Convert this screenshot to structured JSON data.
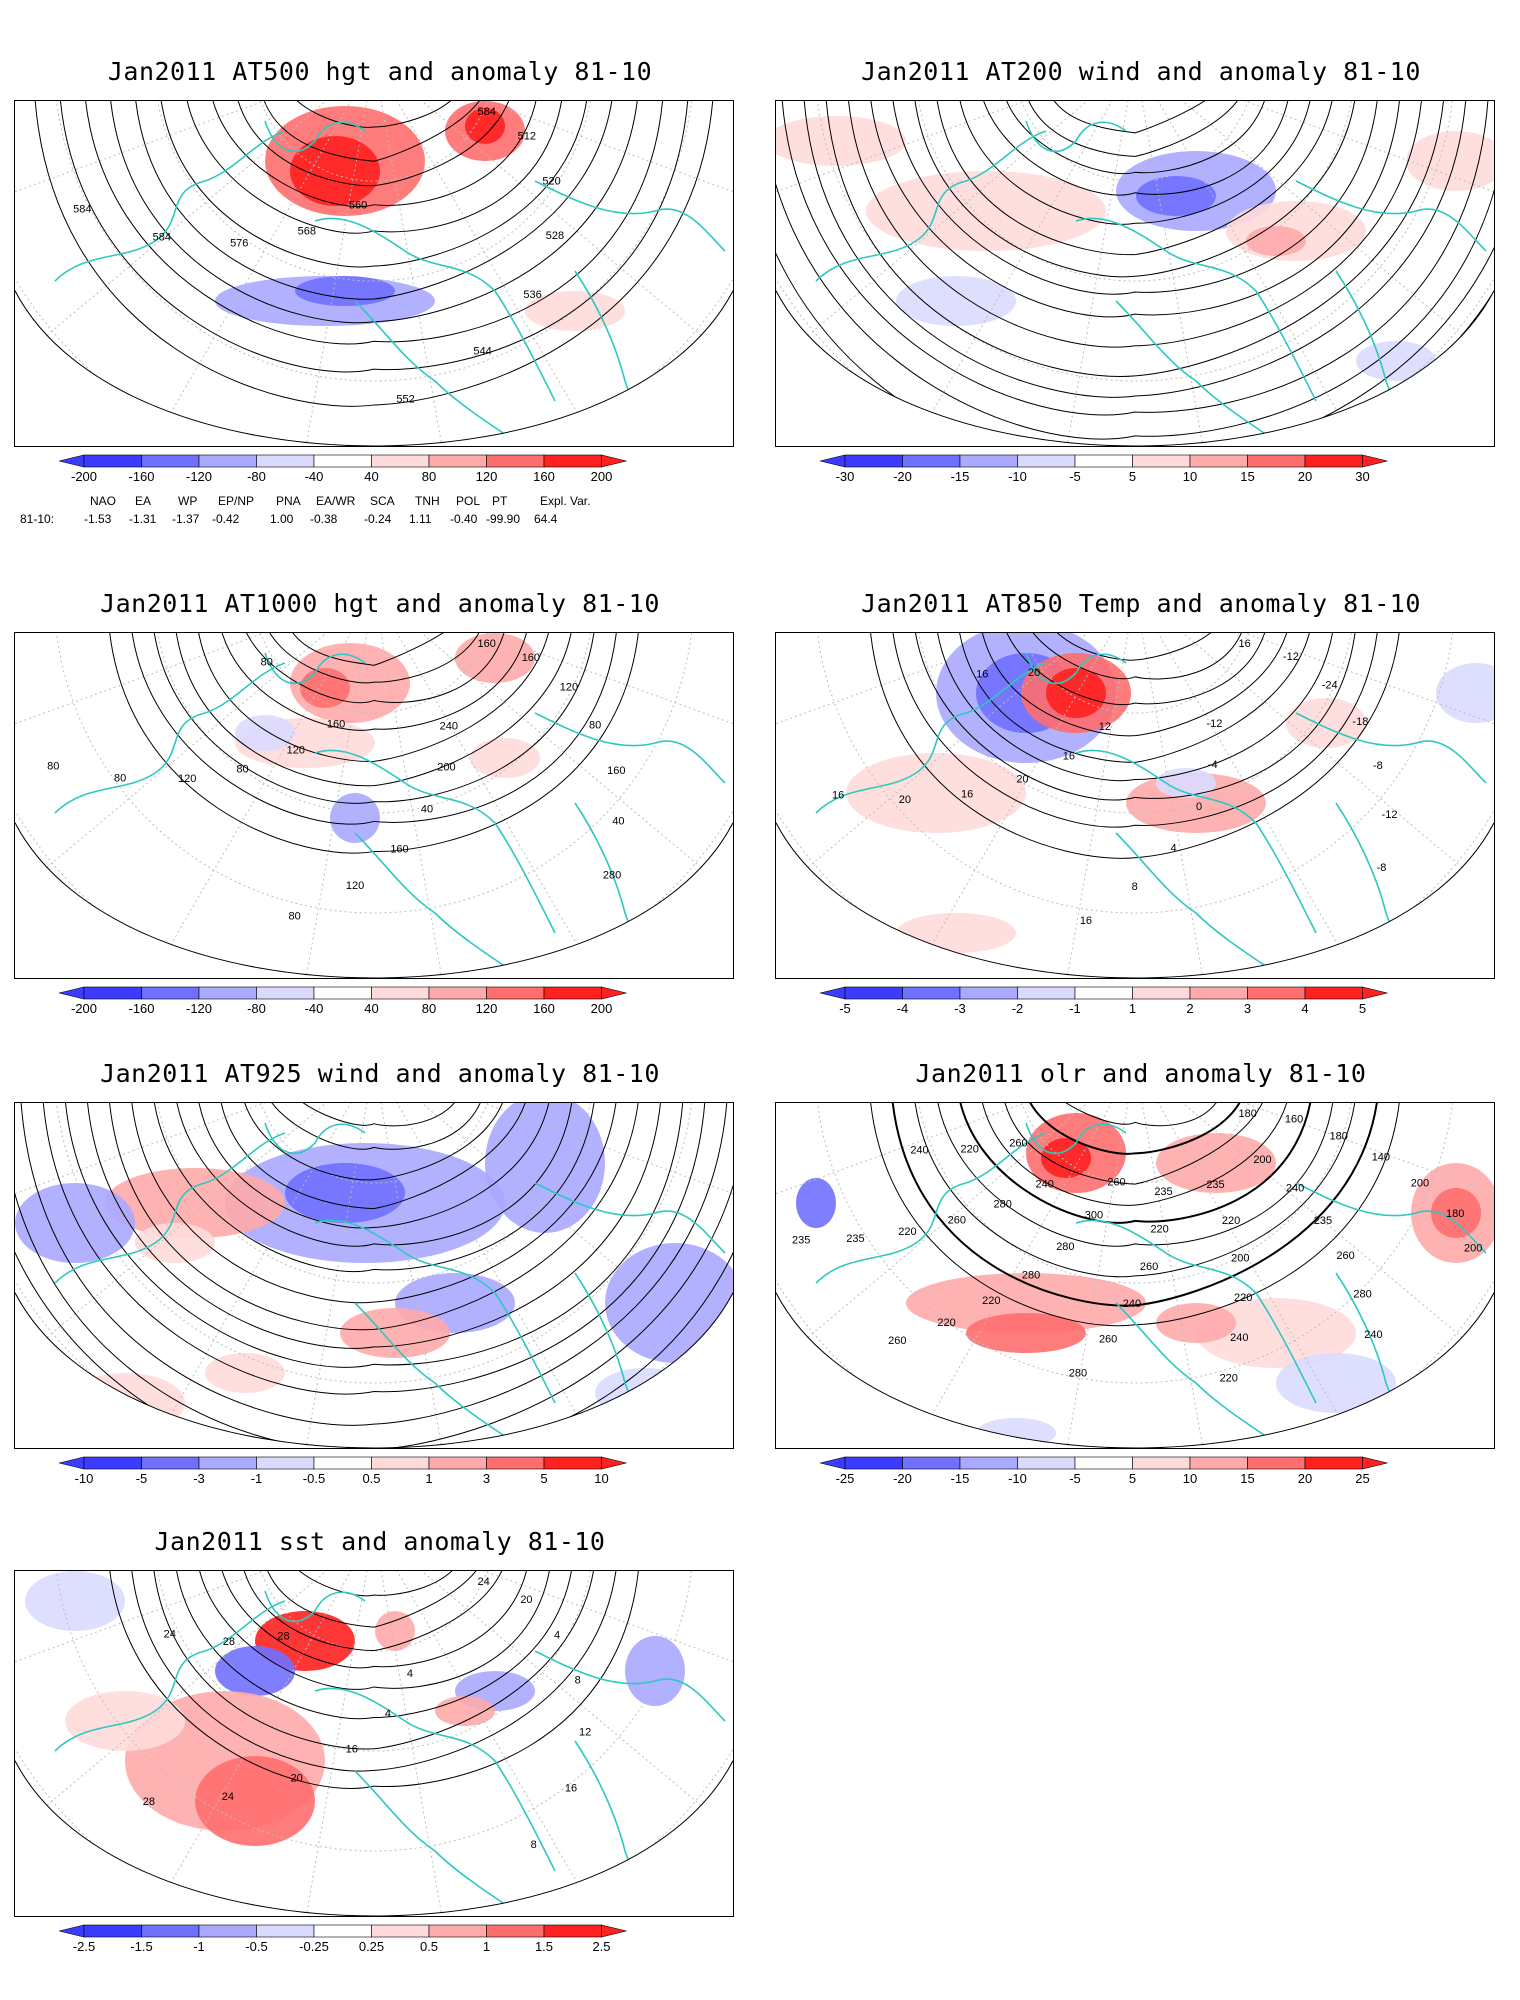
{
  "colors": {
    "red_strong": "#ff2020",
    "red_mid": "#ff6e6e",
    "red_light": "#ffaaaa",
    "red_pale": "#ffdada",
    "blue_strong": "#3c3cff",
    "blue_mid": "#7070ff",
    "blue_light": "#a9a9ff",
    "blue_pale": "#dadaff",
    "coast": "#2ec8c0",
    "contour": "#000000",
    "grid": "#bdbdbd"
  },
  "panels": [
    {
      "id": "at500",
      "title": "Jan2011 AT500 hgt and anomaly 81-10",
      "colorbar": [
        "-200",
        "-160",
        "-120",
        "-80",
        "-40",
        "40",
        "80",
        "120",
        "160",
        "200"
      ],
      "contour_labels": [
        "584",
        "512",
        "520",
        "528",
        "536",
        "544",
        "552",
        "560",
        "568",
        "576",
        "584",
        "584"
      ]
    },
    {
      "id": "at200",
      "title": "Jan2011 AT200 wind and anomaly 81-10",
      "colorbar": [
        "-30",
        "-20",
        "-15",
        "-10",
        "-5",
        "5",
        "10",
        "15",
        "20",
        "30"
      ],
      "contour_labels": []
    },
    {
      "id": "at1000",
      "title": "Jan2011 AT1000 hgt and anomaly 81-10",
      "colorbar": [
        "-200",
        "-160",
        "-120",
        "-80",
        "-40",
        "40",
        "80",
        "120",
        "160",
        "200"
      ],
      "contour_labels": [
        "160",
        "160",
        "120",
        "80",
        "160",
        "40",
        "280",
        "240",
        "200",
        "40",
        "160",
        "120",
        "80",
        "160",
        "120",
        "80",
        "120",
        "80",
        "80",
        "80"
      ]
    },
    {
      "id": "at850",
      "title": "Jan2011 AT850 Temp and anomaly 81-10",
      "colorbar": [
        "-5",
        "-4",
        "-3",
        "-2",
        "-1",
        "1",
        "2",
        "3",
        "4",
        "5"
      ],
      "contour_labels": [
        "16",
        "-12",
        "-24",
        "-18",
        "-8",
        "-12",
        "-8",
        "-12",
        "-4",
        "0",
        "4",
        "8",
        "16",
        "12",
        "16",
        "20",
        "16",
        "20",
        "16",
        "20",
        "16"
      ]
    },
    {
      "id": "at925",
      "title": "Jan2011 AT925 wind and anomaly 81-10",
      "colorbar": [
        "-10",
        "-5",
        "-3",
        "-1",
        "-0.5",
        "0.5",
        "1",
        "3",
        "5",
        "10"
      ],
      "contour_labels": []
    },
    {
      "id": "olr",
      "title": "Jan2011 olr and anomaly 81-10",
      "colorbar": [
        "-25",
        "-20",
        "-15",
        "-10",
        "-5",
        "5",
        "10",
        "15",
        "20",
        "25"
      ],
      "contour_labels": [
        "180",
        "160",
        "180",
        "140",
        "200",
        "180",
        "200",
        "200",
        "240",
        "235",
        "260",
        "280",
        "240",
        "235",
        "220",
        "200",
        "220",
        "240",
        "220",
        "235",
        "220",
        "260",
        "240",
        "260",
        "280",
        "260",
        "300",
        "280",
        "280",
        "220",
        "220",
        "260",
        "240",
        "280",
        "260",
        "220",
        "235",
        "235",
        "260",
        "220",
        "240"
      ]
    },
    {
      "id": "sst",
      "title": "Jan2011 sst and anomaly 81-10",
      "colorbar": [
        "-2.5",
        "-1.5",
        "-1",
        "-0.5",
        "-0.25",
        "0.25",
        "0.5",
        "1",
        "1.5",
        "2.5"
      ],
      "contour_labels": [
        "24",
        "20",
        "4",
        "8",
        "12",
        "16",
        "8",
        "4",
        "4",
        "16",
        "20",
        "24",
        "28",
        "28",
        "28",
        "24"
      ]
    }
  ],
  "indices": {
    "headers": [
      "NAO",
      "EA",
      "WP",
      "EP/NP",
      "PNA",
      "EA/WR",
      "SCA",
      "TNH",
      "POL",
      "PT",
      "Expl. Var."
    ],
    "row_label": "81-10:",
    "values": [
      "-1.53",
      "-1.31",
      "-1.37",
      "-0.42",
      "1.00",
      "-0.38",
      "-0.24",
      "1.11",
      "-0.40",
      "-99.90",
      "64.4"
    ]
  }
}
